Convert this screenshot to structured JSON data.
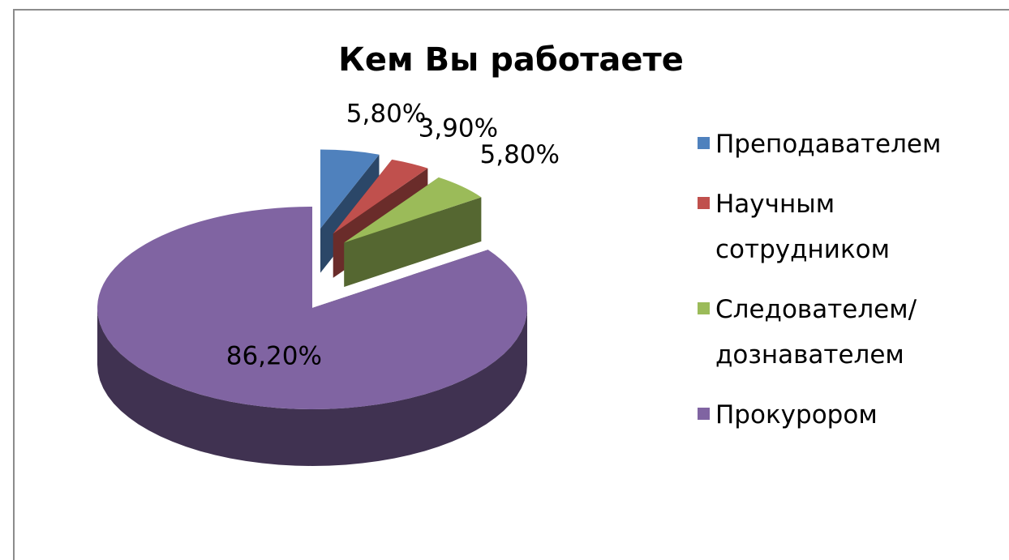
{
  "chart_data": {
    "type": "pie",
    "title": "Кем Вы работаете",
    "categories": [
      "Преподавателем",
      "Научным сотрудником",
      "Следователем/дознавателем",
      "Прокурором"
    ],
    "values": [
      5.8,
      3.9,
      5.8,
      86.2
    ],
    "value_labels": [
      "5,80%",
      "3,90%",
      "5,80%",
      "86,20%"
    ],
    "colors": [
      "#4f81bd",
      "#c0504d",
      "#9bbb59",
      "#8064a2"
    ],
    "legend": "right"
  }
}
